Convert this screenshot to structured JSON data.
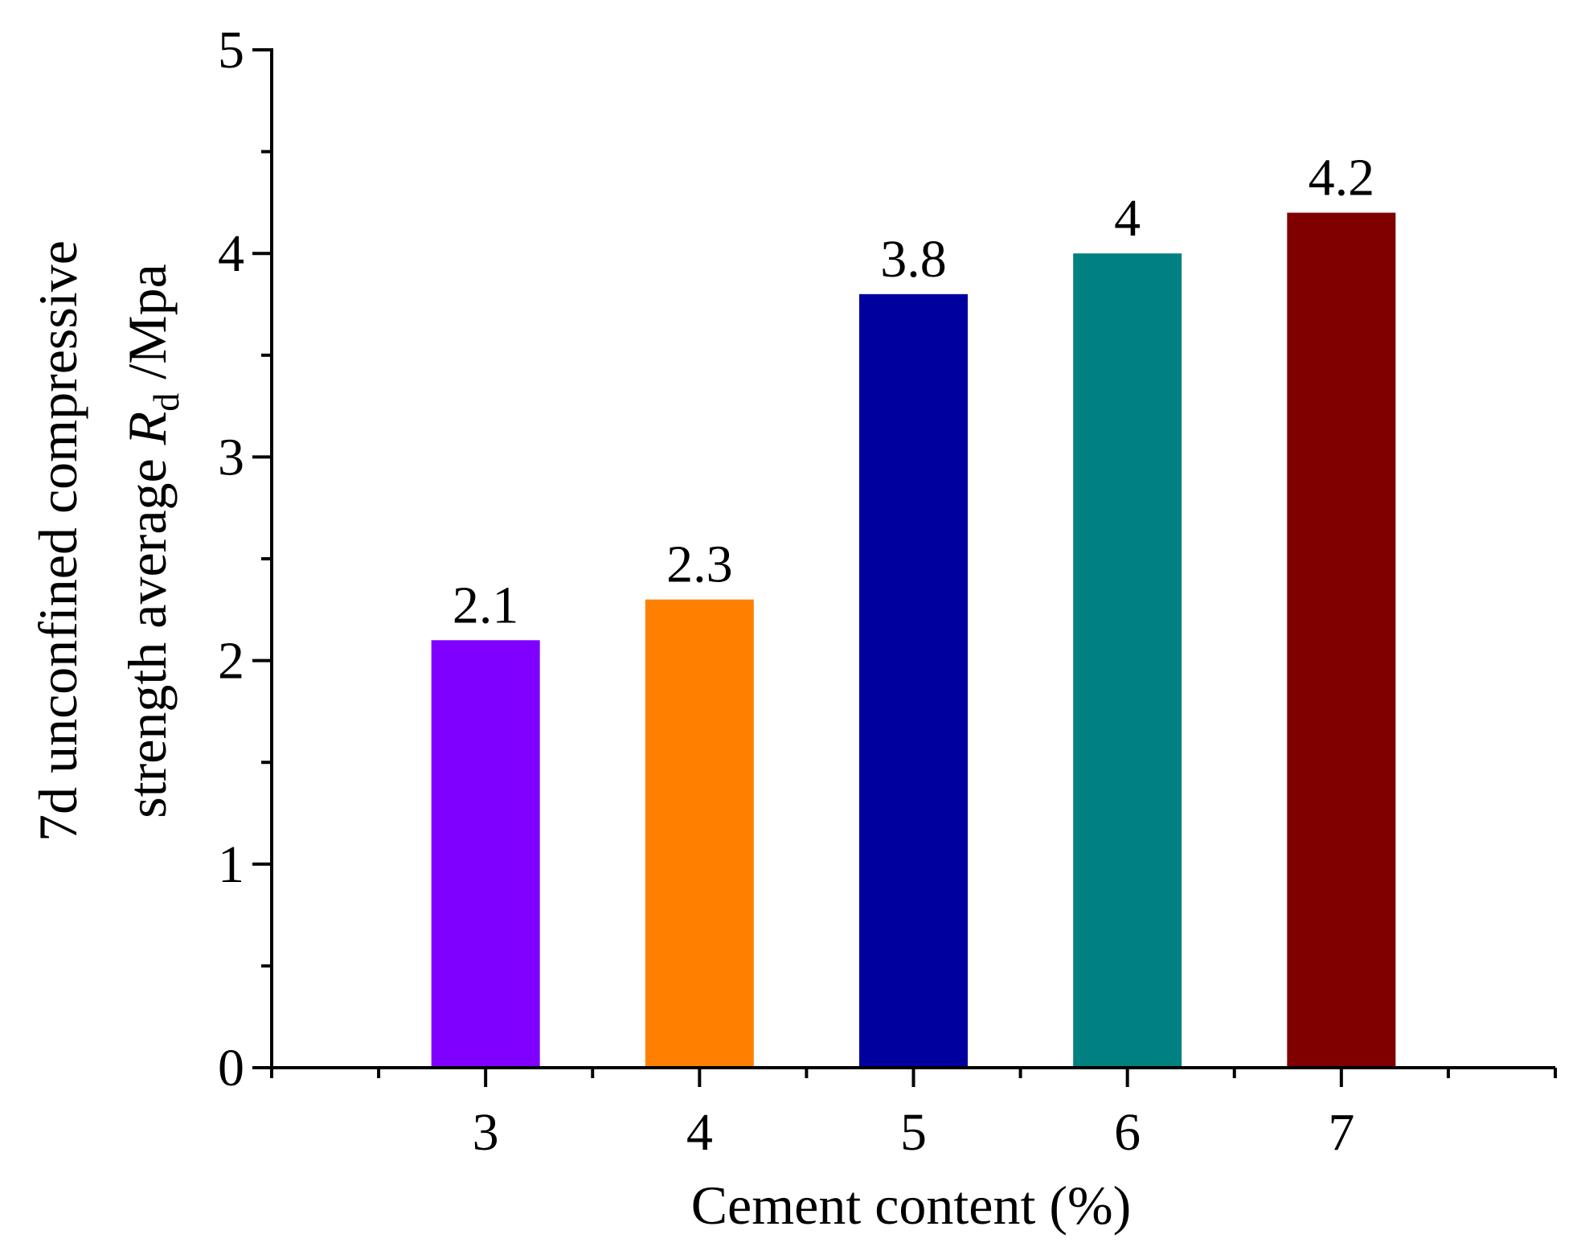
{
  "chart_data": {
    "type": "bar",
    "categories": [
      "3",
      "4",
      "5",
      "6",
      "7"
    ],
    "values": [
      2.1,
      2.3,
      3.8,
      4,
      4.2
    ],
    "value_labels": [
      "2.1",
      "2.3",
      "3.8",
      "4",
      "4.2"
    ],
    "bar_colors": [
      "#8000ff",
      "#ff8000",
      "#00009f",
      "#008080",
      "#800000"
    ],
    "title": "",
    "xlabel": "Cement content (%)",
    "ylabel": {
      "line1": "7d unconfined compressive",
      "line2_prefix": "strength average ",
      "line2_symbol": "R",
      "line2_subscript": "d",
      "line2_suffix": " /Mpa"
    },
    "xlim": [
      2,
      8
    ],
    "ylim": [
      0,
      5
    ],
    "yticks": [
      0,
      1,
      2,
      3,
      4,
      5
    ],
    "y_minor_step": 0.5,
    "x_minor_step": 0.5,
    "grid": false,
    "legend": "none"
  }
}
